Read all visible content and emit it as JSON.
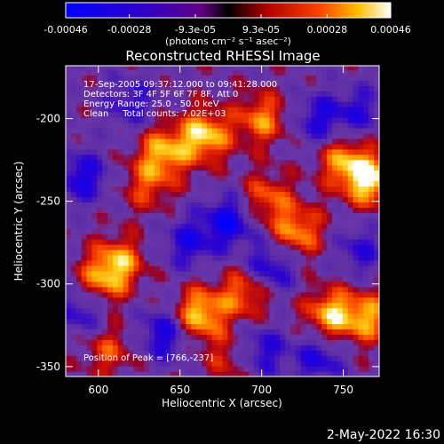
{
  "chart_data": {
    "type": "heatmap",
    "title": "Reconstructed RHESSI Image",
    "xlabel": "Heliocentric X (arcsec)",
    "ylabel": "Heliocentric Y (arcsec)",
    "xlim": [
      580,
      772
    ],
    "ylim": [
      -356,
      -168
    ],
    "x_ticks": [
      "600",
      "650",
      "700",
      "750"
    ],
    "x_tick_values": [
      600,
      650,
      700,
      750
    ],
    "y_ticks": [
      "-200",
      "-250",
      "-300",
      "-350"
    ],
    "y_tick_values": [
      -200,
      -250,
      -300,
      -350
    ],
    "colorbar": {
      "range": [
        -0.00046,
        0.00046
      ],
      "tick_labels": [
        "-0.00046",
        "-0.00028",
        "-9.3e-05",
        "9.3e-05",
        "0.00028",
        "0.00046"
      ],
      "tick_values": [
        -0.00046,
        -0.00028,
        -9.3e-05,
        9.3e-05,
        0.00028,
        0.00046
      ],
      "unit_label": "(photons cm⁻² s⁻¹ asec⁻²)"
    },
    "annotations": {
      "time_range": "17-Sep-2005 09:37:12.000 to 09:41:28.000",
      "detectors": "Detectors: 3F 4F 5F 6F 7F 8F, Att 0",
      "energy": "Energy Range: 25.0 - 50.0 keV",
      "method_counts": "Clean     Total counts: 7.02E+03",
      "peak": "Position of Peak = [766,-237]"
    },
    "peak_position": [
      766,
      -237
    ],
    "emission_blobs": [
      {
        "x": 665,
        "y": -210,
        "level": 0.95
      },
      {
        "x": 640,
        "y": -220,
        "level": 0.8
      },
      {
        "x": 700,
        "y": -200,
        "level": 0.7
      },
      {
        "x": 766,
        "y": -237,
        "level": 1.0
      },
      {
        "x": 750,
        "y": -225,
        "level": 0.7
      },
      {
        "x": 612,
        "y": -287,
        "level": 0.8
      },
      {
        "x": 600,
        "y": -300,
        "level": 0.6
      },
      {
        "x": 662,
        "y": -318,
        "level": 0.95
      },
      {
        "x": 690,
        "y": -305,
        "level": 0.7
      },
      {
        "x": 742,
        "y": -318,
        "level": 0.85
      },
      {
        "x": 765,
        "y": -320,
        "level": 0.75
      },
      {
        "x": 722,
        "y": -268,
        "level": 0.75
      },
      {
        "x": 703,
        "y": -248,
        "level": 0.6
      },
      {
        "x": 606,
        "y": -340,
        "level": 0.5
      },
      {
        "x": 680,
        "y": -345,
        "level": 0.4
      },
      {
        "x": 630,
        "y": -240,
        "level": 0.5
      }
    ],
    "negative_blobs": [
      {
        "x": 680,
        "y": -262,
        "level": -0.8
      },
      {
        "x": 655,
        "y": -275,
        "level": -0.6
      },
      {
        "x": 590,
        "y": -235,
        "level": -0.7
      },
      {
        "x": 590,
        "y": -315,
        "level": -0.6
      },
      {
        "x": 640,
        "y": -330,
        "level": -0.7
      },
      {
        "x": 705,
        "y": -290,
        "level": -0.7
      },
      {
        "x": 735,
        "y": -345,
        "level": -0.6
      },
      {
        "x": 760,
        "y": -195,
        "level": -0.5
      },
      {
        "x": 620,
        "y": -190,
        "level": -0.5
      },
      {
        "x": 735,
        "y": -200,
        "level": -0.6
      },
      {
        "x": 760,
        "y": -280,
        "level": -0.5
      },
      {
        "x": 700,
        "y": -340,
        "level": -0.6
      }
    ]
  },
  "footer_date": "2-May-2022 16:30"
}
